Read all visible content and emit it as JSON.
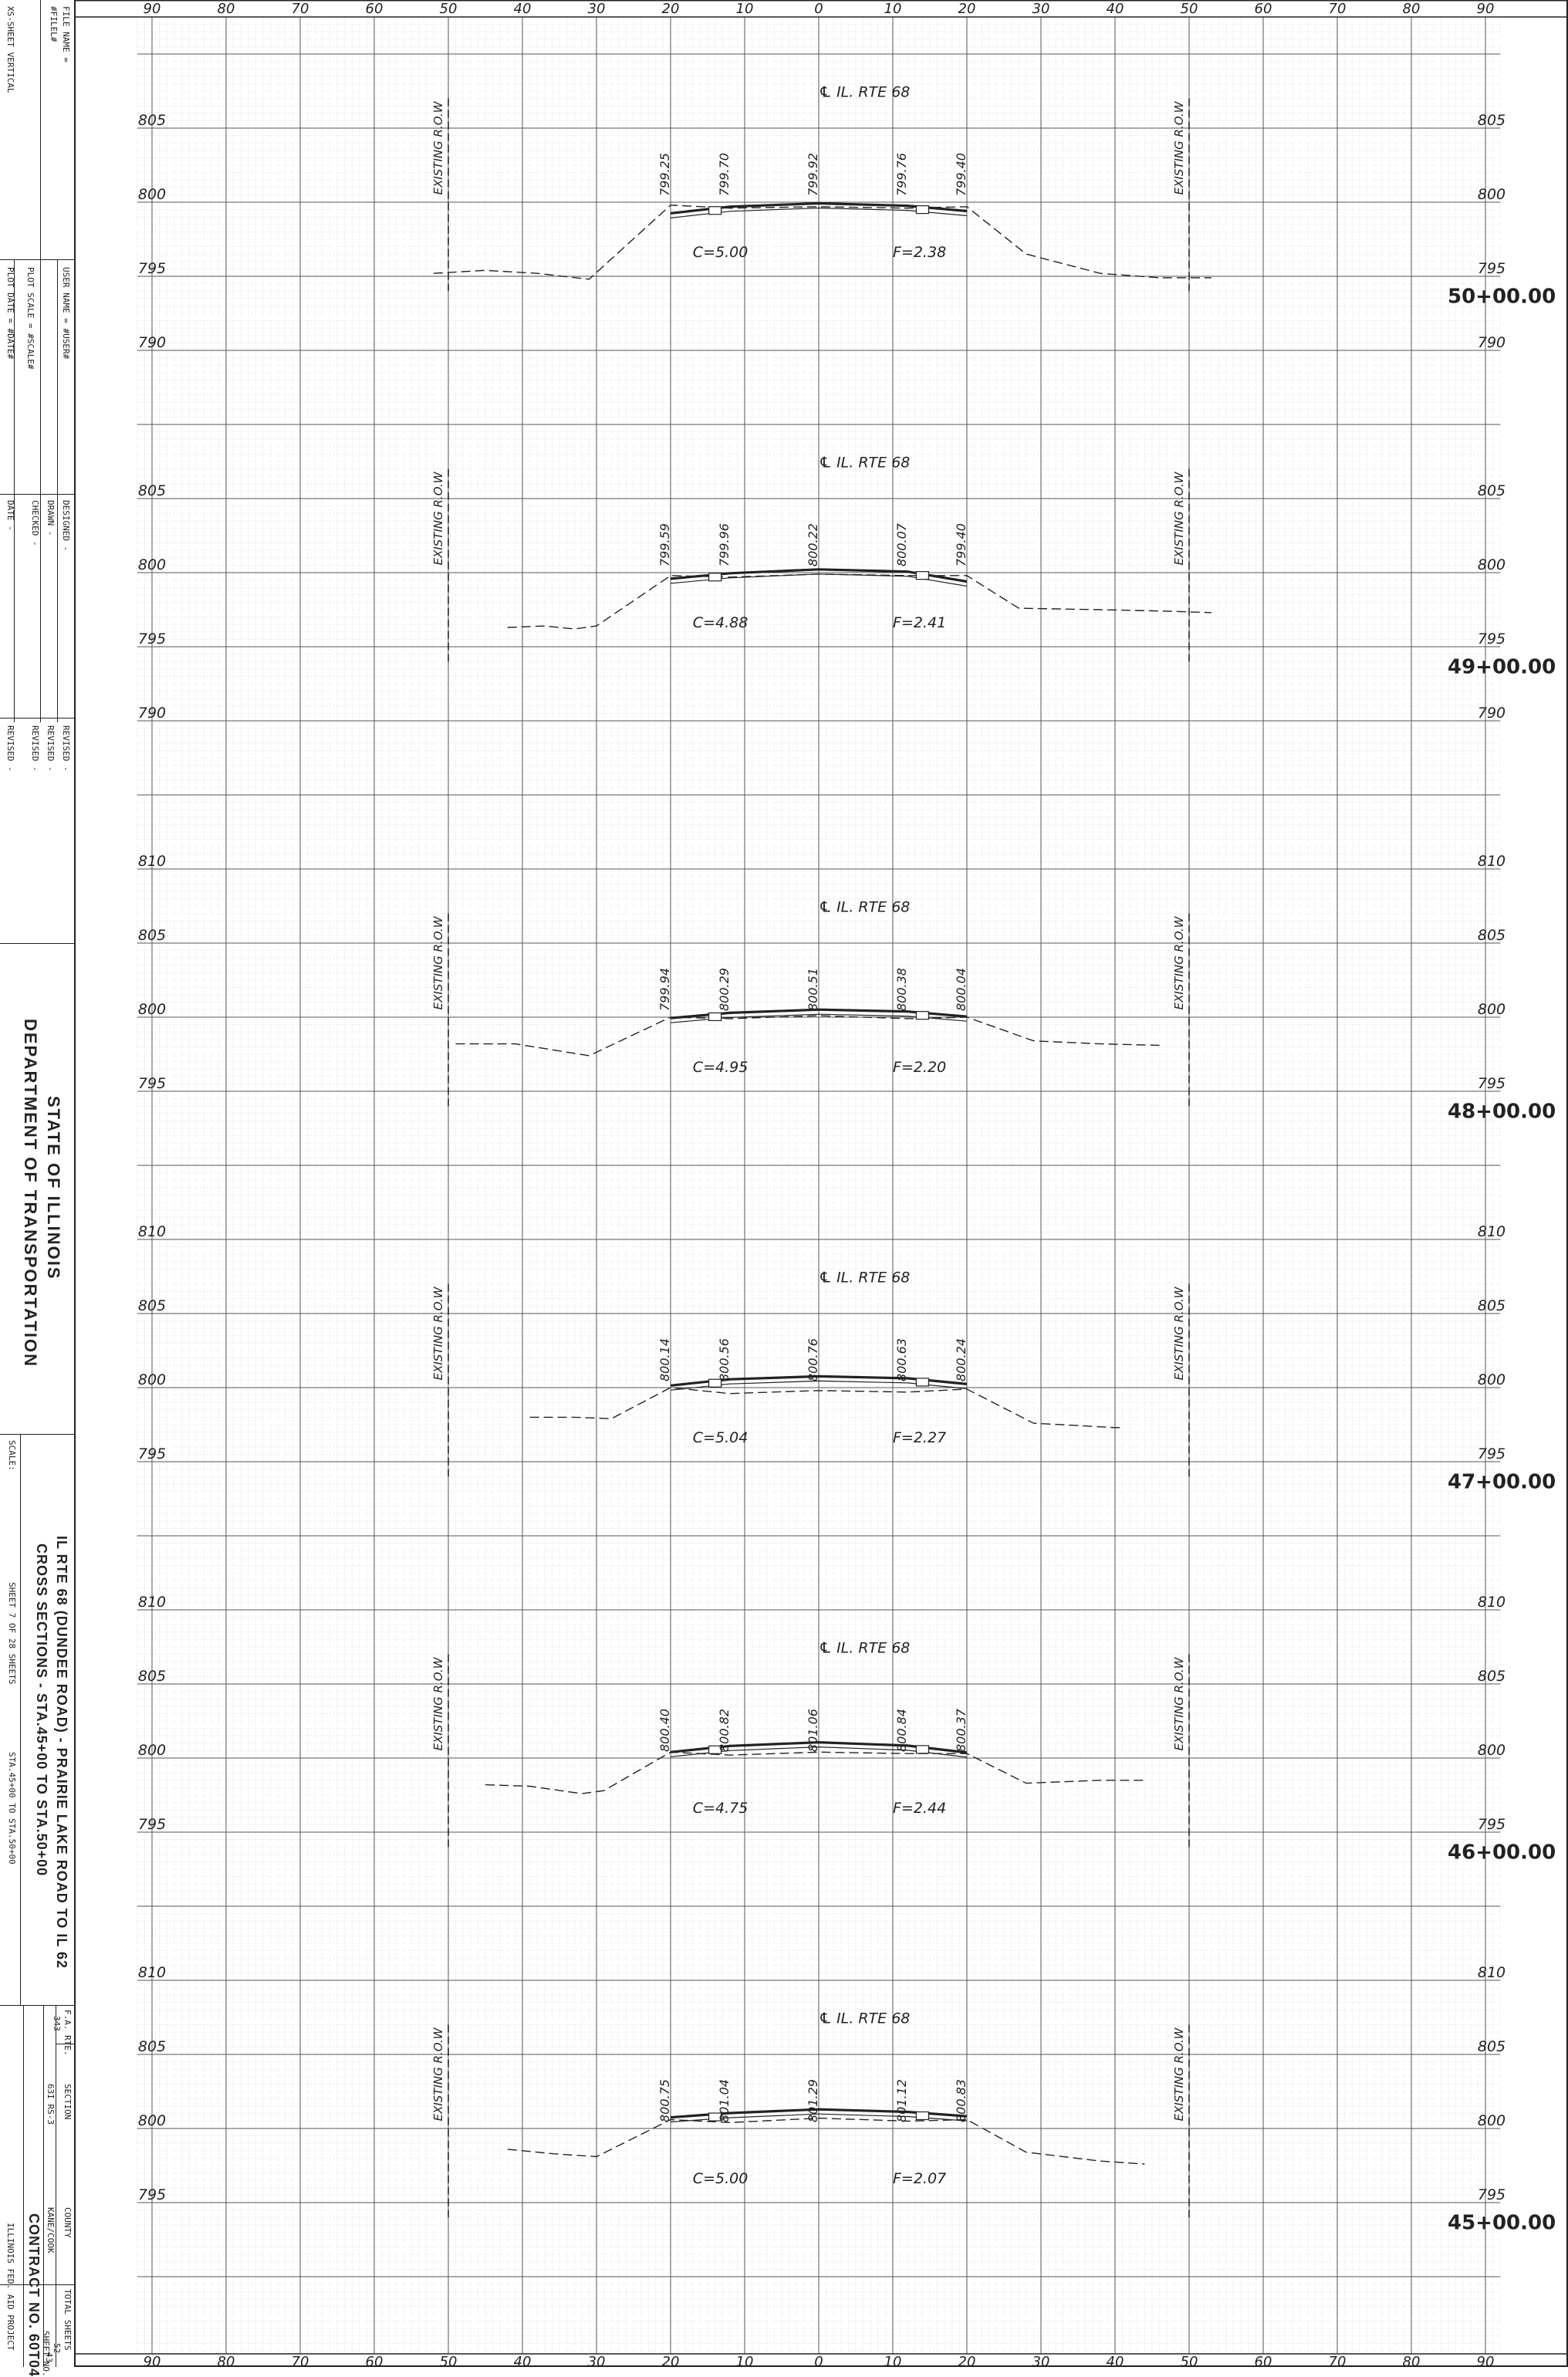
{
  "title_block": {
    "file_name_label": "FILE NAME =",
    "file_name_value": "#FILEL#",
    "sheet_label": "XS-SHEET VERTICAL",
    "user_name_label": "USER NAME = #USER#",
    "plot_scale_label": "PLOT SCALE = #SCALE#",
    "plot_date_label": "PLOT DATE = #DATE#",
    "designed": "DESIGNED  -",
    "drawn": "DRAWN  -",
    "checked": "CHECKED  -",
    "date": "DATE  -",
    "revised_1": "REVISED  -",
    "revised_2": "REVISED  -",
    "revised_3": "REVISED  -",
    "revised_4": "REVISED  -",
    "agency_line1": "STATE OF ILLINOIS",
    "agency_line2": "DEPARTMENT OF TRANSPORTATION",
    "scale_label": "SCALE:",
    "project_line1": "IL RTE 68 (DUNDEE ROAD) - PRAIRIE LAKE ROAD TO IL 62",
    "project_line2": "CROSS SECTIONS - STA.45+00 TO STA.50+00",
    "sheet_number": "SHEET 7    OF  28   SHEETS",
    "sta_range": "STA.45+00    TO STA.50+00",
    "fa_rte_label": "F.A. RTE.",
    "fa_rte_value": "343",
    "section_label": "SECTION",
    "section_value": "63I RS-3",
    "county_label": "COUNTY",
    "county_value": "KANE/COOK",
    "total_sheets_label": "TOTAL SHEETS",
    "total_sheets_value": "52",
    "sheet_no_label": "SHEET NO.",
    "sheet_no_value": "43",
    "contract": "CONTRACT NO. 60T04",
    "fed_aid": "ILLINOIS FED. AID PROJECT"
  },
  "offset_labels": [
    "90",
    "80",
    "70",
    "60",
    "50",
    "40",
    "30",
    "20",
    "10",
    "0",
    "10",
    "20",
    "30",
    "40",
    "50",
    "60",
    "70",
    "80",
    "90"
  ],
  "centerline_label": "℄ IL. RTE 68",
  "row_label": "EXISTING R.O.W",
  "sections": [
    {
      "station": "50+00.00",
      "elev_min": 785,
      "elev_max": 810,
      "elev_labels": [
        {
          "elev": 805,
          "text": "805"
        },
        {
          "elev": 800,
          "text": "800"
        },
        {
          "elev": 795,
          "text": "795"
        },
        {
          "elev": 790,
          "text": "790"
        }
      ],
      "grade_elevations": [
        "799.25",
        "799.70",
        "799.92",
        "799.76",
        "799.40"
      ],
      "cut": "C=5.00",
      "fill": "F=2.38",
      "ground": [
        [
          -52,
          795.2
        ],
        [
          -45,
          795.4
        ],
        [
          -38,
          795.2
        ],
        [
          -31,
          794.8
        ],
        [
          -20,
          799.8
        ],
        [
          -12,
          799.6
        ],
        [
          0,
          799.7
        ],
        [
          12,
          799.6
        ],
        [
          20,
          799.7
        ],
        [
          28,
          796.5
        ],
        [
          38,
          795.2
        ],
        [
          46,
          794.9
        ],
        [
          53,
          794.9
        ]
      ]
    },
    {
      "station": "49+00.00",
      "elev_min": 785,
      "elev_max": 810,
      "elev_labels": [
        {
          "elev": 805,
          "text": "805"
        },
        {
          "elev": 800,
          "text": "800"
        },
        {
          "elev": 795,
          "text": "795"
        },
        {
          "elev": 790,
          "text": "790"
        }
      ],
      "grade_elevations": [
        "799.59",
        "799.96",
        "800.22",
        "800.07",
        "799.40"
      ],
      "cut": "C=4.88",
      "fill": "F=2.41",
      "ground": [
        [
          -42,
          796.3
        ],
        [
          -37,
          796.4
        ],
        [
          -33,
          796.2
        ],
        [
          -30,
          796.4
        ],
        [
          -20,
          799.8
        ],
        [
          -12,
          799.7
        ],
        [
          0,
          799.9
        ],
        [
          12,
          799.8
        ],
        [
          20,
          799.8
        ],
        [
          27,
          797.6
        ],
        [
          38,
          797.5
        ],
        [
          47,
          797.4
        ],
        [
          53,
          797.3
        ]
      ]
    },
    {
      "station": "48+00.00",
      "elev_min": 790,
      "elev_max": 815,
      "elev_labels": [
        {
          "elev": 810,
          "text": "810"
        },
        {
          "elev": 805,
          "text": "805"
        },
        {
          "elev": 800,
          "text": "800"
        },
        {
          "elev": 795,
          "text": "795"
        }
      ],
      "grade_elevations": [
        "799.94",
        "800.29",
        "800.51",
        "800.38",
        "800.04"
      ],
      "cut": "C=4.95",
      "fill": "F=2.20",
      "ground": [
        [
          -49,
          798.2
        ],
        [
          -41,
          798.2
        ],
        [
          -36,
          797.8
        ],
        [
          -31,
          797.4
        ],
        [
          -20,
          800.0
        ],
        [
          -12,
          799.9
        ],
        [
          0,
          800.1
        ],
        [
          12,
          799.9
        ],
        [
          20,
          800.0
        ],
        [
          29,
          798.4
        ],
        [
          38,
          798.2
        ],
        [
          46,
          798.1
        ]
      ]
    },
    {
      "station": "47+00.00",
      "elev_min": 790,
      "elev_max": 815,
      "elev_labels": [
        {
          "elev": 810,
          "text": "810"
        },
        {
          "elev": 805,
          "text": "805"
        },
        {
          "elev": 800,
          "text": "800"
        },
        {
          "elev": 795,
          "text": "795"
        }
      ],
      "grade_elevations": [
        "800.14",
        "800.56",
        "800.76",
        "800.63",
        "800.24"
      ],
      "cut": "C=5.04",
      "fill": "F=2.27",
      "ground": [
        [
          -39,
          798.0
        ],
        [
          -33,
          798.0
        ],
        [
          -28,
          797.9
        ],
        [
          -20,
          800.0
        ],
        [
          -12,
          799.6
        ],
        [
          0,
          799.8
        ],
        [
          12,
          799.7
        ],
        [
          20,
          799.9
        ],
        [
          29,
          797.6
        ],
        [
          40,
          797.3
        ],
        [
          41,
          797.3
        ]
      ]
    },
    {
      "station": "46+00.00",
      "elev_min": 790,
      "elev_max": 815,
      "elev_labels": [
        {
          "elev": 810,
          "text": "810"
        },
        {
          "elev": 805,
          "text": "805"
        },
        {
          "elev": 800,
          "text": "800"
        },
        {
          "elev": 795,
          "text": "795"
        }
      ],
      "grade_elevations": [
        "800.40",
        "800.82",
        "801.06",
        "800.84",
        "800.37"
      ],
      "cut": "C=4.75",
      "fill": "F=2.44",
      "ground": [
        [
          -45,
          798.2
        ],
        [
          -39,
          798.1
        ],
        [
          -32,
          797.6
        ],
        [
          -29,
          797.8
        ],
        [
          -20,
          800.4
        ],
        [
          -12,
          800.2
        ],
        [
          0,
          800.4
        ],
        [
          12,
          800.3
        ],
        [
          20,
          800.3
        ],
        [
          28,
          798.3
        ],
        [
          38,
          798.5
        ],
        [
          44,
          798.5
        ]
      ]
    },
    {
      "station": "45+00.00",
      "elev_min": 790,
      "elev_max": 815,
      "elev_labels": [
        {
          "elev": 810,
          "text": "810"
        },
        {
          "elev": 805,
          "text": "805"
        },
        {
          "elev": 800,
          "text": "800"
        },
        {
          "elev": 795,
          "text": "795"
        }
      ],
      "grade_elevations": [
        "800.75",
        "801.04",
        "801.29",
        "801.12",
        "800.83"
      ],
      "cut": "C=5.00",
      "fill": "F=2.07",
      "ground": [
        [
          -42,
          798.6
        ],
        [
          -36,
          798.3
        ],
        [
          -30,
          798.1
        ],
        [
          -20,
          800.6
        ],
        [
          -12,
          800.4
        ],
        [
          0,
          800.7
        ],
        [
          12,
          800.5
        ],
        [
          20,
          800.6
        ],
        [
          28,
          798.4
        ],
        [
          38,
          797.8
        ],
        [
          44,
          797.6
        ]
      ]
    }
  ],
  "colors": {
    "ink": "#222222",
    "grid_major": "#555555",
    "grid_minor": "#cfcfcf",
    "paper": "#ffffff"
  }
}
